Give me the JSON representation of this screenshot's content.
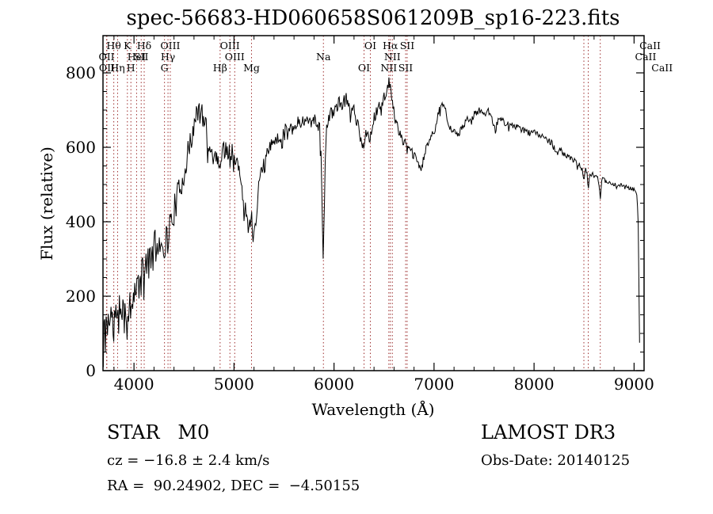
{
  "chart_data": {
    "type": "line",
    "title": "spec-56683-HD060658S061209B_sp16-223.fits",
    "xlabel": "Wavelength (Å)",
    "ylabel": "Flux (relative)",
    "xlim": [
      3690,
      9100
    ],
    "ylim": [
      0,
      900
    ],
    "xticks": [
      4000,
      5000,
      6000,
      7000,
      8000,
      9000
    ],
    "yticks": [
      0,
      200,
      400,
      600,
      800
    ],
    "grid": false,
    "legend": "none",
    "series_color": "#000000",
    "marker_color": "#9e2f2f",
    "spectral_lines": [
      {
        "label": "OII",
        "wavelength": 3726,
        "row": 2
      },
      {
        "label": "OII",
        "wavelength": 3729,
        "row": 3
      },
      {
        "label": "Hθ",
        "wavelength": 3798,
        "row": 1
      },
      {
        "label": "Hη",
        "wavelength": 3836,
        "row": 3
      },
      {
        "label": "K",
        "wavelength": 3934,
        "row": 1
      },
      {
        "label": "H",
        "wavelength": 3969,
        "row": 3
      },
      {
        "label": "HeI",
        "wavelength": 4026,
        "row": 2
      },
      {
        "label": "SII",
        "wavelength": 4072,
        "row": 2
      },
      {
        "label": "Hδ",
        "wavelength": 4102,
        "row": 1
      },
      {
        "label": "G",
        "wavelength": 4305,
        "row": 3
      },
      {
        "label": "Hγ",
        "wavelength": 4340,
        "row": 2
      },
      {
        "label": "OIII",
        "wavelength": 4363,
        "row": 1
      },
      {
        "label": "Hβ",
        "wavelength": 4861,
        "row": 3
      },
      {
        "label": "OIII",
        "wavelength": 4959,
        "row": 1
      },
      {
        "label": "OIII",
        "wavelength": 5007,
        "row": 2
      },
      {
        "label": "Mg",
        "wavelength": 5175,
        "row": 3
      },
      {
        "label": "Na",
        "wavelength": 5894,
        "row": 2
      },
      {
        "label": "OI",
        "wavelength": 6300,
        "row": 3
      },
      {
        "label": "OI",
        "wavelength": 6363,
        "row": 1
      },
      {
        "label": "NII",
        "wavelength": 6548,
        "row": 3
      },
      {
        "label": "Hα",
        "wavelength": 6563,
        "row": 1
      },
      {
        "label": "NII",
        "wavelength": 6583,
        "row": 2
      },
      {
        "label": "SII",
        "wavelength": 6716,
        "row": 3
      },
      {
        "label": "SII",
        "wavelength": 6731,
        "row": 1
      },
      {
        "label": "CaII",
        "wavelength": 8542,
        "row": 1,
        "label_dx": 78
      },
      {
        "label": "CaII",
        "wavelength": 8498,
        "row": 2,
        "label_dx": 78
      },
      {
        "label": "CaII",
        "wavelength": 8662,
        "row": 3,
        "label_dx": 78
      }
    ],
    "envelope": [
      [
        3693,
        8
      ],
      [
        3700,
        120
      ],
      [
        3712,
        85
      ],
      [
        3724,
        150
      ],
      [
        3736,
        100
      ],
      [
        3748,
        165
      ],
      [
        3760,
        115
      ],
      [
        3772,
        170
      ],
      [
        3784,
        125
      ],
      [
        3798,
        105
      ],
      [
        3812,
        165
      ],
      [
        3824,
        140
      ],
      [
        3836,
        105
      ],
      [
        3850,
        175
      ],
      [
        3862,
        145
      ],
      [
        3876,
        195
      ],
      [
        3890,
        175
      ],
      [
        3905,
        205
      ],
      [
        3920,
        160
      ],
      [
        3934,
        110
      ],
      [
        3948,
        190
      ],
      [
        3960,
        170
      ],
      [
        3969,
        140
      ],
      [
        3982,
        210
      ],
      [
        3996,
        235
      ],
      [
        4010,
        205
      ],
      [
        4026,
        195
      ],
      [
        4040,
        255
      ],
      [
        4056,
        225
      ],
      [
        4072,
        240
      ],
      [
        4088,
        265
      ],
      [
        4102,
        225
      ],
      [
        4118,
        290
      ],
      [
        4134,
        310
      ],
      [
        4150,
        280
      ],
      [
        4168,
        325
      ],
      [
        4186,
        300
      ],
      [
        4204,
        340
      ],
      [
        4222,
        320
      ],
      [
        4240,
        355
      ],
      [
        4258,
        330
      ],
      [
        4276,
        365
      ],
      [
        4290,
        345
      ],
      [
        4305,
        330
      ],
      [
        4322,
        360
      ],
      [
        4340,
        350
      ],
      [
        4356,
        385
      ],
      [
        4372,
        400
      ],
      [
        4390,
        420
      ],
      [
        4410,
        440
      ],
      [
        4430,
        460
      ],
      [
        4450,
        480
      ],
      [
        4470,
        500
      ],
      [
        4490,
        520
      ],
      [
        4510,
        545
      ],
      [
        4530,
        570
      ],
      [
        4555,
        600
      ],
      [
        4580,
        630
      ],
      [
        4605,
        660
      ],
      [
        4625,
        685
      ],
      [
        4645,
        700
      ],
      [
        4660,
        685
      ],
      [
        4675,
        700
      ],
      [
        4690,
        665
      ],
      [
        4705,
        690
      ],
      [
        4720,
        655
      ],
      [
        4735,
        625
      ],
      [
        4750,
        600
      ],
      [
        4765,
        580
      ],
      [
        4780,
        595
      ],
      [
        4795,
        570
      ],
      [
        4810,
        585
      ],
      [
        4825,
        565
      ],
      [
        4840,
        580
      ],
      [
        4861,
        545
      ],
      [
        4875,
        585
      ],
      [
        4890,
        600
      ],
      [
        4905,
        585
      ],
      [
        4920,
        600
      ],
      [
        4935,
        585
      ],
      [
        4950,
        598
      ],
      [
        4965,
        580
      ],
      [
        4980,
        592
      ],
      [
        5000,
        570
      ],
      [
        5015,
        555
      ],
      [
        5030,
        565
      ],
      [
        5045,
        540
      ],
      [
        5060,
        515
      ],
      [
        5075,
        490
      ],
      [
        5090,
        465
      ],
      [
        5105,
        445
      ],
      [
        5120,
        430
      ],
      [
        5135,
        415
      ],
      [
        5150,
        405
      ],
      [
        5165,
        395
      ],
      [
        5178,
        410
      ],
      [
        5190,
        330
      ],
      [
        5200,
        400
      ],
      [
        5215,
        385
      ],
      [
        5228,
        440
      ],
      [
        5242,
        480
      ],
      [
        5258,
        510
      ],
      [
        5274,
        535
      ],
      [
        5290,
        550
      ],
      [
        5310,
        565
      ],
      [
        5330,
        580
      ],
      [
        5350,
        592
      ],
      [
        5375,
        605
      ],
      [
        5400,
        618
      ],
      [
        5425,
        628
      ],
      [
        5450,
        620
      ],
      [
        5475,
        635
      ],
      [
        5500,
        645
      ],
      [
        5530,
        650
      ],
      [
        5560,
        658
      ],
      [
        5590,
        650
      ],
      [
        5620,
        660
      ],
      [
        5650,
        668
      ],
      [
        5680,
        672
      ],
      [
        5710,
        665
      ],
      [
        5740,
        678
      ],
      [
        5770,
        672
      ],
      [
        5800,
        680
      ],
      [
        5830,
        668
      ],
      [
        5858,
        650
      ],
      [
        5875,
        540
      ],
      [
        5890,
        290
      ],
      [
        5902,
        430
      ],
      [
        5915,
        600
      ],
      [
        5930,
        660
      ],
      [
        5950,
        680
      ],
      [
        5975,
        692
      ],
      [
        6000,
        700
      ],
      [
        6025,
        710
      ],
      [
        6050,
        718
      ],
      [
        6075,
        705
      ],
      [
        6100,
        725
      ],
      [
        6125,
        730
      ],
      [
        6150,
        712
      ],
      [
        6175,
        700
      ],
      [
        6200,
        705
      ],
      [
        6220,
        680
      ],
      [
        6240,
        655
      ],
      [
        6260,
        630
      ],
      [
        6280,
        615
      ],
      [
        6300,
        600
      ],
      [
        6315,
        630
      ],
      [
        6330,
        650
      ],
      [
        6345,
        635
      ],
      [
        6363,
        625
      ],
      [
        6380,
        660
      ],
      [
        6400,
        678
      ],
      [
        6420,
        690
      ],
      [
        6440,
        700
      ],
      [
        6460,
        712
      ],
      [
        6480,
        722
      ],
      [
        6500,
        735
      ],
      [
        6520,
        748
      ],
      [
        6540,
        760
      ],
      [
        6552,
        778
      ],
      [
        6563,
        770
      ],
      [
        6575,
        735
      ],
      [
        6590,
        705
      ],
      [
        6610,
        680
      ],
      [
        6630,
        660
      ],
      [
        6650,
        645
      ],
      [
        6670,
        632
      ],
      [
        6690,
        620
      ],
      [
        6710,
        608
      ],
      [
        6731,
        596
      ],
      [
        6750,
        592
      ],
      [
        6775,
        585
      ],
      [
        6800,
        578
      ],
      [
        6825,
        565
      ],
      [
        6850,
        552
      ],
      [
        6870,
        542
      ],
      [
        6890,
        560
      ],
      [
        6910,
        585
      ],
      [
        6930,
        605
      ],
      [
        6950,
        618
      ],
      [
        6975,
        630
      ],
      [
        7000,
        642
      ],
      [
        7025,
        668
      ],
      [
        7050,
        695
      ],
      [
        7075,
        718
      ],
      [
        7090,
        722
      ],
      [
        7110,
        705
      ],
      [
        7130,
        680
      ],
      [
        7155,
        660
      ],
      [
        7180,
        645
      ],
      [
        7205,
        638
      ],
      [
        7230,
        632
      ],
      [
        7255,
        640
      ],
      [
        7280,
        652
      ],
      [
        7305,
        663
      ],
      [
        7330,
        672
      ],
      [
        7360,
        680
      ],
      [
        7390,
        688
      ],
      [
        7420,
        693
      ],
      [
        7450,
        697
      ],
      [
        7480,
        698
      ],
      [
        7510,
        692
      ],
      [
        7540,
        696
      ],
      [
        7570,
        690
      ],
      [
        7600,
        658
      ],
      [
        7615,
        645
      ],
      [
        7630,
        668
      ],
      [
        7650,
        676
      ],
      [
        7675,
        672
      ],
      [
        7700,
        668
      ],
      [
        7730,
        662
      ],
      [
        7760,
        658
      ],
      [
        7790,
        660
      ],
      [
        7820,
        654
      ],
      [
        7850,
        650
      ],
      [
        7880,
        647
      ],
      [
        7910,
        643
      ],
      [
        7940,
        640
      ],
      [
        7970,
        645
      ],
      [
        8000,
        648
      ],
      [
        8030,
        636
      ],
      [
        8060,
        630
      ],
      [
        8090,
        632
      ],
      [
        8120,
        626
      ],
      [
        8150,
        618
      ],
      [
        8180,
        610
      ],
      [
        8210,
        595
      ],
      [
        8230,
        580
      ],
      [
        8250,
        595
      ],
      [
        8280,
        588
      ],
      [
        8310,
        580
      ],
      [
        8340,
        576
      ],
      [
        8370,
        570
      ],
      [
        8400,
        565
      ],
      [
        8430,
        558
      ],
      [
        8460,
        550
      ],
      [
        8480,
        542
      ],
      [
        8498,
        505
      ],
      [
        8512,
        540
      ],
      [
        8528,
        535
      ],
      [
        8542,
        480
      ],
      [
        8556,
        532
      ],
      [
        8575,
        528
      ],
      [
        8600,
        524
      ],
      [
        8625,
        518
      ],
      [
        8645,
        512
      ],
      [
        8662,
        462
      ],
      [
        8676,
        515
      ],
      [
        8700,
        512
      ],
      [
        8730,
        508
      ],
      [
        8760,
        505
      ],
      [
        8790,
        503
      ],
      [
        8820,
        500
      ],
      [
        8850,
        498
      ],
      [
        8880,
        497
      ],
      [
        8910,
        494
      ],
      [
        8940,
        492
      ],
      [
        8970,
        490
      ],
      [
        9000,
        488
      ],
      [
        9015,
        480
      ],
      [
        9030,
        465
      ],
      [
        9040,
        420
      ],
      [
        9048,
        250
      ],
      [
        9055,
        95
      ]
    ],
    "noise": {
      "seed": 11,
      "step": 7,
      "amplitude": [
        [
          3693,
          55
        ],
        [
          3950,
          55
        ],
        [
          4200,
          48
        ],
        [
          4450,
          40
        ],
        [
          4650,
          30
        ],
        [
          4900,
          22
        ],
        [
          5100,
          22
        ],
        [
          5300,
          20
        ],
        [
          5600,
          18
        ],
        [
          5880,
          20
        ],
        [
          6100,
          18
        ],
        [
          6400,
          16
        ],
        [
          6600,
          15
        ],
        [
          6900,
          13
        ],
        [
          7200,
          11
        ],
        [
          7500,
          10
        ],
        [
          7800,
          9
        ],
        [
          8100,
          8
        ],
        [
          8500,
          7
        ],
        [
          8800,
          6
        ],
        [
          9055,
          8
        ]
      ]
    }
  },
  "footer": {
    "class_label": "STAR   M0",
    "cz_line": "cz = −16.8 ± 2.4 km/s",
    "radec_line": "RA =  90.24902, DEC =  −4.50155",
    "survey": "LAMOST DR3",
    "obs_date": "Obs-Date: 20140125"
  }
}
